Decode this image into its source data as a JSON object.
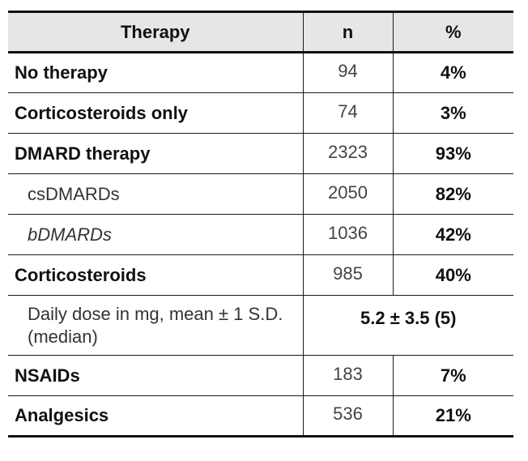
{
  "table": {
    "headers": {
      "therapy": "Therapy",
      "n": "n",
      "percent": "%"
    },
    "rows": [
      {
        "label": "No therapy",
        "n": "94",
        "pct": "4%"
      },
      {
        "label": "Corticosteroids only",
        "n": "74",
        "pct": "3%"
      },
      {
        "label": "DMARD therapy",
        "n": "2323",
        "pct": "93%"
      },
      {
        "label": "csDMARDs",
        "n": "2050",
        "pct": "82%"
      },
      {
        "label": "bDMARDs",
        "n": "1036",
        "pct": "42%"
      },
      {
        "label": "Corticosteroids",
        "n": "985",
        "pct": "40%"
      },
      {
        "label": "Daily dose in mg, mean ± 1 S.D. (median)",
        "value": "5.2 ± 3.5 (5)"
      },
      {
        "label": "NSAIDs",
        "n": "183",
        "pct": "7%"
      },
      {
        "label": "Analgesics",
        "n": "536",
        "pct": "21%"
      }
    ]
  }
}
